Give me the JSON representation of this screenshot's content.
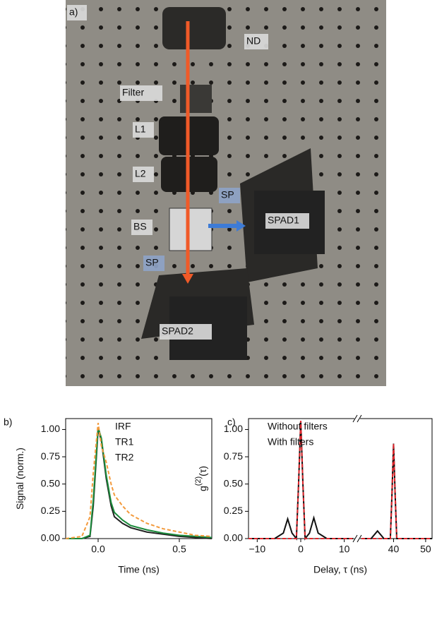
{
  "photo": {
    "panel_label": "a)",
    "labels": [
      "ND",
      "Filter",
      "L1",
      "L2",
      "BS",
      "SP",
      "SP",
      "SPAD1",
      "SPAD2"
    ]
  },
  "chart_data": [
    {
      "type": "line",
      "panel_label": "b)",
      "ylabel": "Signal (norm.)",
      "xlabel": "Time (ns)",
      "x": [
        -0.2,
        -0.1,
        -0.05,
        -0.03,
        0,
        0.02,
        0.05,
        0.08,
        0.1,
        0.15,
        0.2,
        0.3,
        0.4,
        0.5,
        0.6,
        0.7
      ],
      "series": [
        {
          "name": "IRF",
          "color": "#222222",
          "dash": false,
          "values": [
            0,
            0,
            0.02,
            0.3,
            1.0,
            0.9,
            0.55,
            0.3,
            0.2,
            0.14,
            0.1,
            0.06,
            0.04,
            0.02,
            0.01,
            0
          ]
        },
        {
          "name": "TR1",
          "color": "#1a8a3a",
          "dash": false,
          "values": [
            0,
            0,
            0.03,
            0.35,
            1.02,
            0.92,
            0.58,
            0.33,
            0.24,
            0.17,
            0.12,
            0.08,
            0.05,
            0.03,
            0.02,
            0.01
          ]
        },
        {
          "name": "TR2",
          "color": "#f39a3c",
          "dash": true,
          "values": [
            0,
            0.02,
            0.2,
            0.6,
            1.06,
            0.85,
            0.7,
            0.5,
            0.4,
            0.3,
            0.22,
            0.14,
            0.09,
            0.06,
            0.03,
            0.02
          ]
        }
      ],
      "xlim_segments": [
        [
          -0.2,
          0.7
        ]
      ],
      "xticks": [
        {
          "value": 0,
          "label": "0.0"
        },
        {
          "value": 0.5,
          "label": "0.5"
        }
      ],
      "ylim": [
        0,
        1.1
      ],
      "yticks": [
        {
          "value": 0,
          "label": "0.00"
        },
        {
          "value": 0.25,
          "label": "0.25"
        },
        {
          "value": 0.5,
          "label": "0.50"
        },
        {
          "value": 0.75,
          "label": "0.75"
        },
        {
          "value": 1,
          "label": "1.00"
        }
      ]
    },
    {
      "type": "line",
      "panel_label": "c)",
      "ylabel": "g",
      "ylabel_sup": "(2)",
      "ylabel_suffix": "(τ)",
      "xlabel": "Delay, τ  (ns)",
      "x": [
        -12,
        -6,
        -4,
        -3,
        -2,
        -1,
        -0.5,
        0,
        0.5,
        1,
        2,
        3,
        4,
        6,
        12,
        30,
        33,
        35,
        37,
        38,
        39,
        39.5,
        40,
        40.5,
        41,
        45,
        52
      ],
      "series": [
        {
          "name": "Without filters",
          "color": "#111111",
          "dash": false,
          "values": [
            0,
            0,
            0.05,
            0.18,
            0.05,
            0,
            0.5,
            1.08,
            0.5,
            0,
            0.05,
            0.19,
            0.05,
            0,
            0,
            0,
            0,
            0.07,
            0,
            0,
            0,
            0.4,
            0.87,
            0.4,
            0,
            0,
            0
          ]
        },
        {
          "name": "With filters",
          "color": "#e0282e",
          "dash": true,
          "values": [
            0,
            0,
            0,
            0,
            0,
            0,
            0.5,
            1.08,
            0.5,
            0,
            0,
            0,
            0,
            0,
            0,
            0,
            0,
            0,
            0,
            0,
            0,
            0.4,
            0.87,
            0.4,
            0,
            0,
            0
          ]
        }
      ],
      "xlim_segments": [
        [
          -12,
          12
        ],
        [
          30,
          52
        ]
      ],
      "xticks": [
        {
          "value": -10,
          "label": "−10"
        },
        0,
        10,
        40,
        50
      ],
      "ylim": [
        0,
        1.1
      ],
      "yticks": [
        {
          "value": 0,
          "label": "0.00"
        },
        {
          "value": 0.25,
          "label": "0.25"
        },
        {
          "value": 0.5,
          "label": "0.50"
        },
        {
          "value": 0.75,
          "label": "0.75"
        },
        {
          "value": 1,
          "label": "1.00"
        }
      ]
    }
  ]
}
